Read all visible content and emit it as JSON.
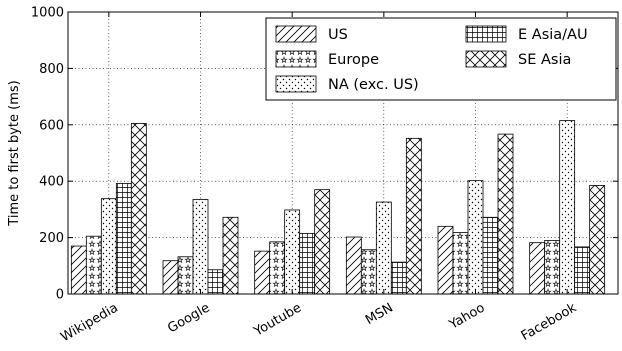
{
  "chart_data": {
    "type": "bar",
    "title": "",
    "xlabel": "",
    "ylabel": "Time to first byte (ms)",
    "ylim": [
      0,
      1000
    ],
    "yticks": [
      "0",
      "200",
      "400",
      "600",
      "800",
      "1000"
    ],
    "grid": true,
    "legend_position": "top-right",
    "categories": [
      "Wikipedia",
      "Google",
      "Youtube",
      "MSN",
      "Yahoo",
      "Facebook"
    ],
    "series": [
      {
        "name": "US",
        "pattern": "diagonal",
        "values": [
          170,
          118,
          152,
          202,
          240,
          182
        ]
      },
      {
        "name": "Europe",
        "pattern": "stars",
        "values": [
          205,
          132,
          185,
          157,
          218,
          190
        ]
      },
      {
        "name": "NA (exc. US)",
        "pattern": "dots",
        "values": [
          338,
          335,
          298,
          326,
          402,
          615
        ]
      },
      {
        "name": "E Asia/AU",
        "pattern": "grid",
        "values": [
          392,
          86,
          215,
          113,
          272,
          167
        ]
      },
      {
        "name": "SE Asia",
        "pattern": "crosshatch",
        "values": [
          605,
          272,
          370,
          552,
          567,
          385
        ]
      }
    ]
  }
}
